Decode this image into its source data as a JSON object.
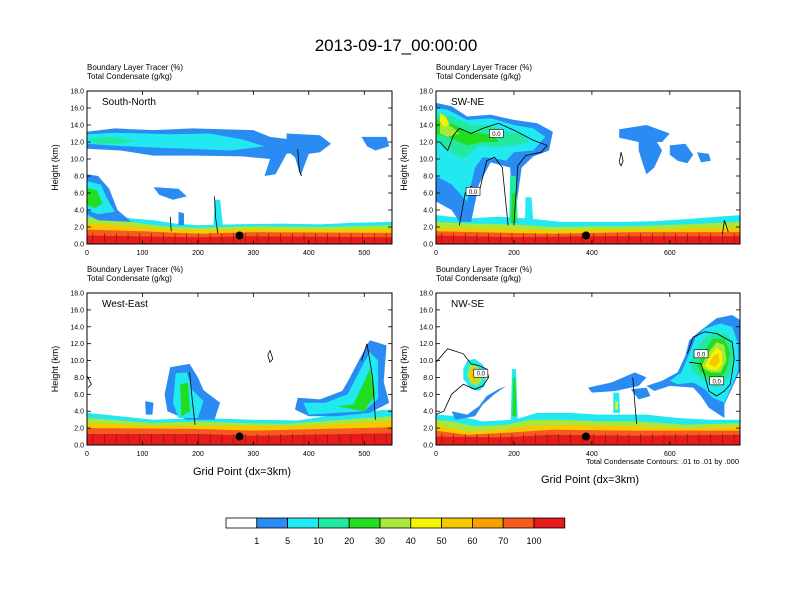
{
  "page": {
    "title": "2013-09-17_00:00:00"
  },
  "panel_labels": {
    "var1": "Boundary Layer Tracer   (%)",
    "var2": "Total Condensate   (g/kg)"
  },
  "axes": {
    "ylabel": "Height (km)",
    "xlabel": "Grid Point (dx=3km)",
    "contour_note": "Total Condensate Contours: .01 to .01 by .000"
  },
  "colorbar": {
    "colors": [
      "#ffffff",
      "#2a8cf2",
      "#22e8f2",
      "#22e8a0",
      "#22dd22",
      "#a8e83c",
      "#f5f500",
      "#f5c800",
      "#f5a000",
      "#f55a1e",
      "#e61c1c"
    ],
    "labels": [
      "1",
      "5",
      "10",
      "20",
      "30",
      "40",
      "50",
      "60",
      "70",
      "100"
    ]
  },
  "chart_data": [
    {
      "type": "heatmap",
      "title": "South-North",
      "xlim": [
        0,
        550
      ],
      "ylim": [
        0,
        18
      ],
      "xticks": [
        "0",
        "100",
        "200",
        "300",
        "400",
        "500"
      ],
      "yticks": [
        "0.0",
        "2.0",
        "4.0",
        "6.0",
        "8.0",
        "10.0",
        "12.0",
        "14.0",
        "16.0",
        "18.0"
      ],
      "marker": {
        "x": 275,
        "y": 1.0
      },
      "contour_labels": []
    },
    {
      "type": "heatmap",
      "title": "SW-NE",
      "xlim": [
        0,
        780
      ],
      "ylim": [
        0,
        18
      ],
      "xticks": [
        "0",
        "200",
        "400",
        "600"
      ],
      "yticks": [
        "0.0",
        "2.0",
        "4.0",
        "6.0",
        "8.0",
        "10.0",
        "12.0",
        "14.0",
        "16.0",
        "18.0"
      ],
      "marker": {
        "x": 385,
        "y": 1.0
      },
      "contour_labels": [
        {
          "x": 155,
          "y": 13.0,
          "text": "0.0"
        },
        {
          "x": 95,
          "y": 6.2,
          "text": "0.0"
        }
      ]
    },
    {
      "type": "heatmap",
      "title": "West-East",
      "xlim": [
        0,
        550
      ],
      "ylim": [
        0,
        18
      ],
      "xticks": [
        "0",
        "100",
        "200",
        "300",
        "400",
        "500"
      ],
      "yticks": [
        "0.0",
        "2.0",
        "4.0",
        "6.0",
        "8.0",
        "10.0",
        "12.0",
        "14.0",
        "16.0",
        "18.0"
      ],
      "marker": {
        "x": 275,
        "y": 1.0
      },
      "contour_labels": []
    },
    {
      "type": "heatmap",
      "title": "NW-SE",
      "xlim": [
        0,
        780
      ],
      "ylim": [
        0,
        18
      ],
      "xticks": [
        "0",
        "200",
        "400",
        "600"
      ],
      "yticks": [
        "0.0",
        "2.0",
        "4.0",
        "6.0",
        "8.0",
        "10.0",
        "12.0",
        "14.0",
        "16.0",
        "18.0"
      ],
      "marker": {
        "x": 385,
        "y": 1.0
      },
      "contour_labels": [
        {
          "x": 115,
          "y": 8.5,
          "text": "0.0"
        },
        {
          "x": 680,
          "y": 10.8,
          "text": "0.0"
        },
        {
          "x": 720,
          "y": 7.6,
          "text": "0.0"
        }
      ]
    }
  ]
}
